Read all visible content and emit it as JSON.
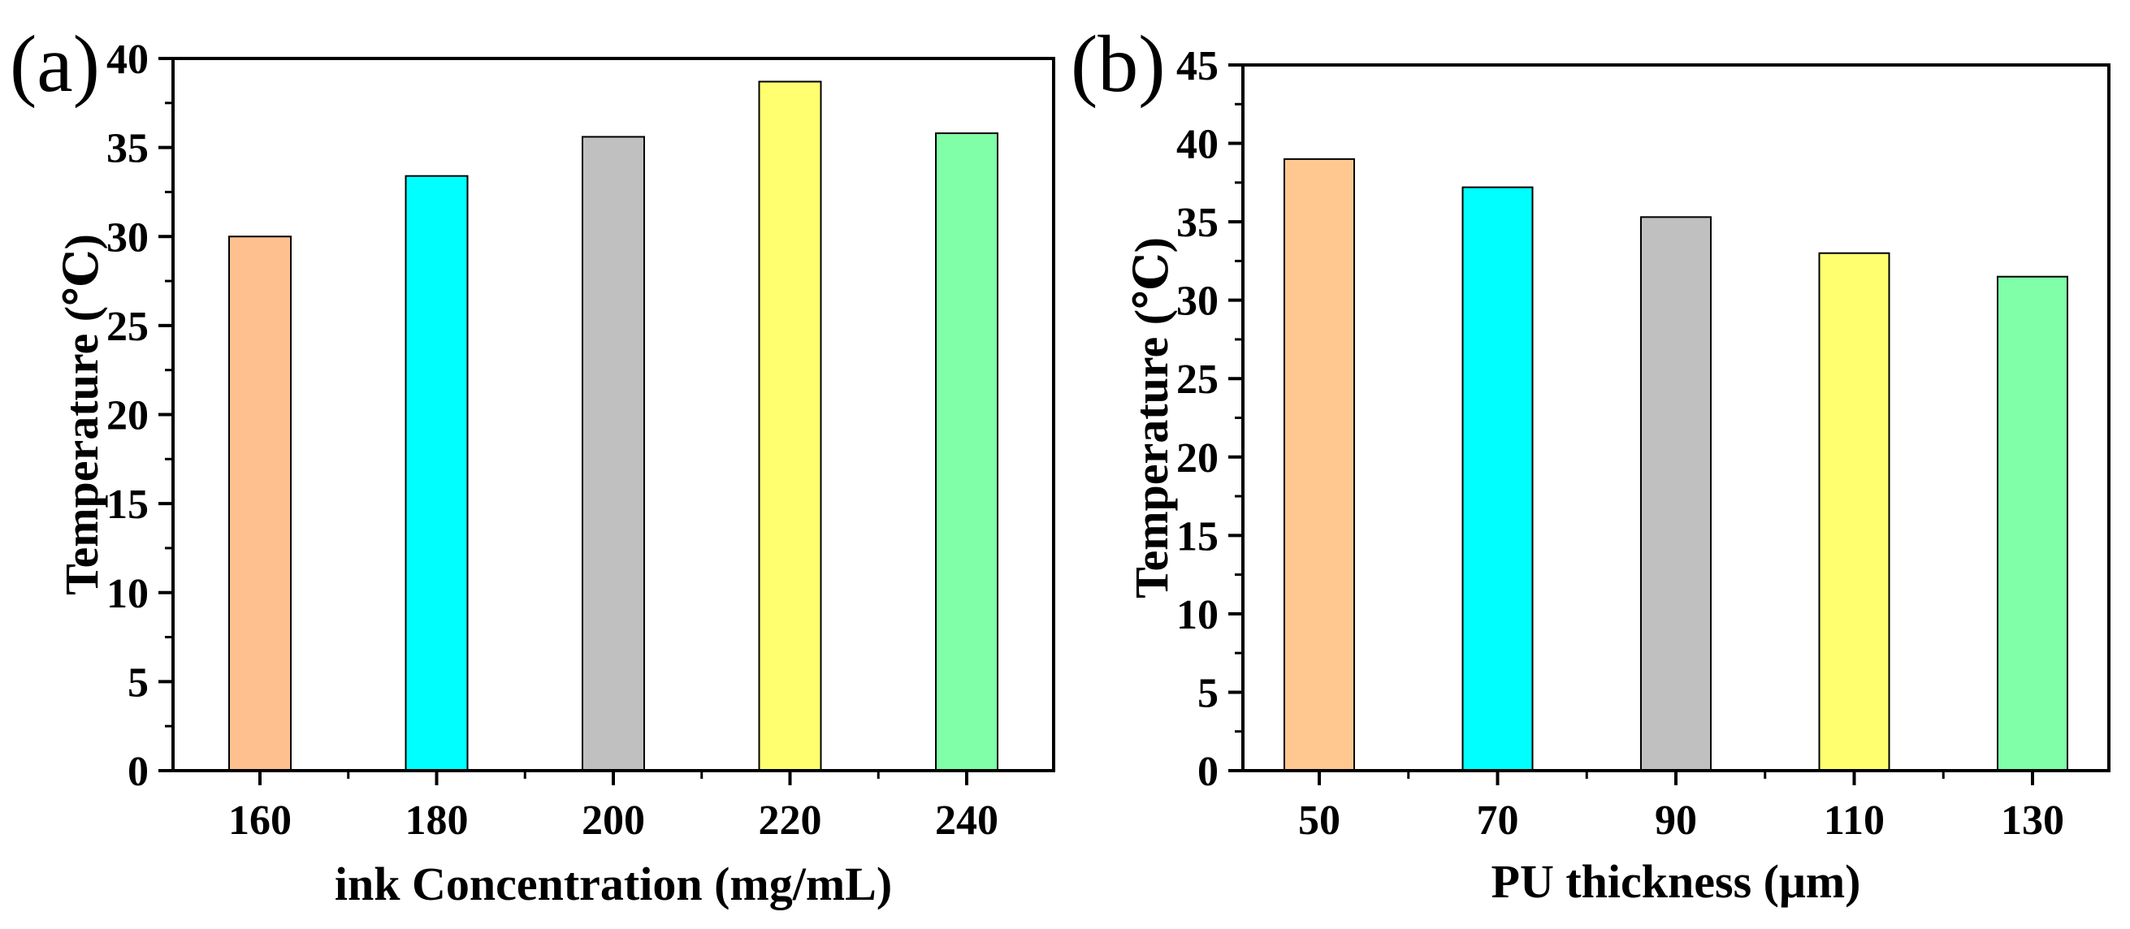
{
  "chart_data": [
    {
      "type": "bar",
      "panel_label": "(a)",
      "categories": [
        "160",
        "180",
        "200",
        "220",
        "240"
      ],
      "values": [
        30.0,
        33.4,
        35.6,
        38.7,
        35.8
      ],
      "colors": [
        "#FFC08F",
        "#00FFFF",
        "#C0C0C0",
        "#FFFF70",
        "#80FFA8"
      ],
      "xlabel": "ink Concentration (mg/mL)",
      "ylabel": "Temperature (℃)",
      "ylim": [
        0,
        40
      ],
      "yticks": [
        "0",
        "5",
        "10",
        "15",
        "20",
        "25",
        "30",
        "35",
        "40"
      ],
      "ytick_values": [
        0,
        5,
        10,
        15,
        20,
        25,
        30,
        35,
        40
      ],
      "grid": false,
      "legend": "none"
    },
    {
      "type": "bar",
      "panel_label": "(b)",
      "categories": [
        "50",
        "70",
        "90",
        "110",
        "130"
      ],
      "values": [
        39.0,
        37.2,
        35.3,
        33.0,
        31.5
      ],
      "colors": [
        "#FFC890",
        "#00FFFF",
        "#C0C0C0",
        "#FFFF70",
        "#80FFA8"
      ],
      "xlabel": "PU thickness (μm)",
      "ylabel": "Temperature (℃)",
      "ylim": [
        0,
        45
      ],
      "yticks": [
        "0",
        "5",
        "10",
        "15",
        "20",
        "25",
        "30",
        "35",
        "40",
        "45"
      ],
      "ytick_values": [
        0,
        5,
        10,
        15,
        20,
        25,
        30,
        35,
        40,
        45
      ],
      "grid": false,
      "legend": "none"
    }
  ]
}
